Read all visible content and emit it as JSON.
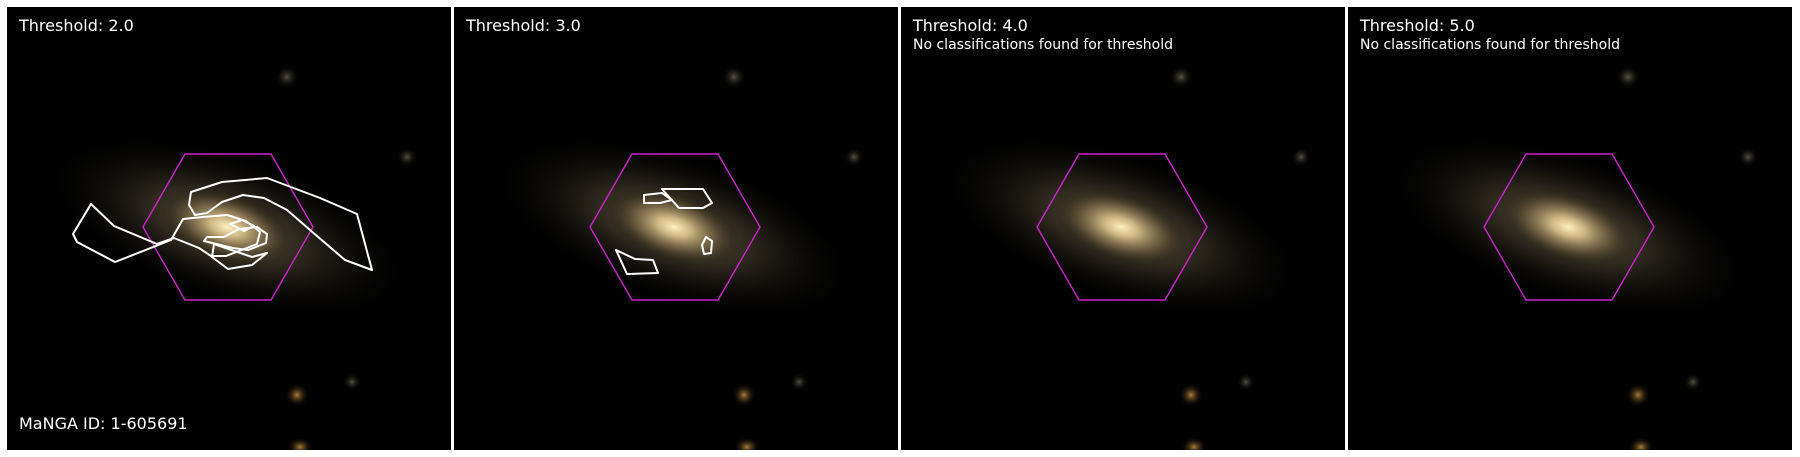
{
  "figure": {
    "galaxy_id_label": "MaNGA ID: 1-605691",
    "overlay_color": "#ffffff",
    "hexagon_color": "#cc22cc"
  },
  "panels": [
    {
      "threshold_label": "Threshold: 2.0",
      "note": "",
      "has_contours": true
    },
    {
      "threshold_label": "Threshold: 3.0",
      "note": "",
      "has_contours": true
    },
    {
      "threshold_label": "Threshold: 4.0",
      "note": "No classifications found for threshold",
      "has_contours": false
    },
    {
      "threshold_label": "Threshold: 5.0",
      "note": "No classifications found for threshold",
      "has_contours": false
    }
  ]
}
